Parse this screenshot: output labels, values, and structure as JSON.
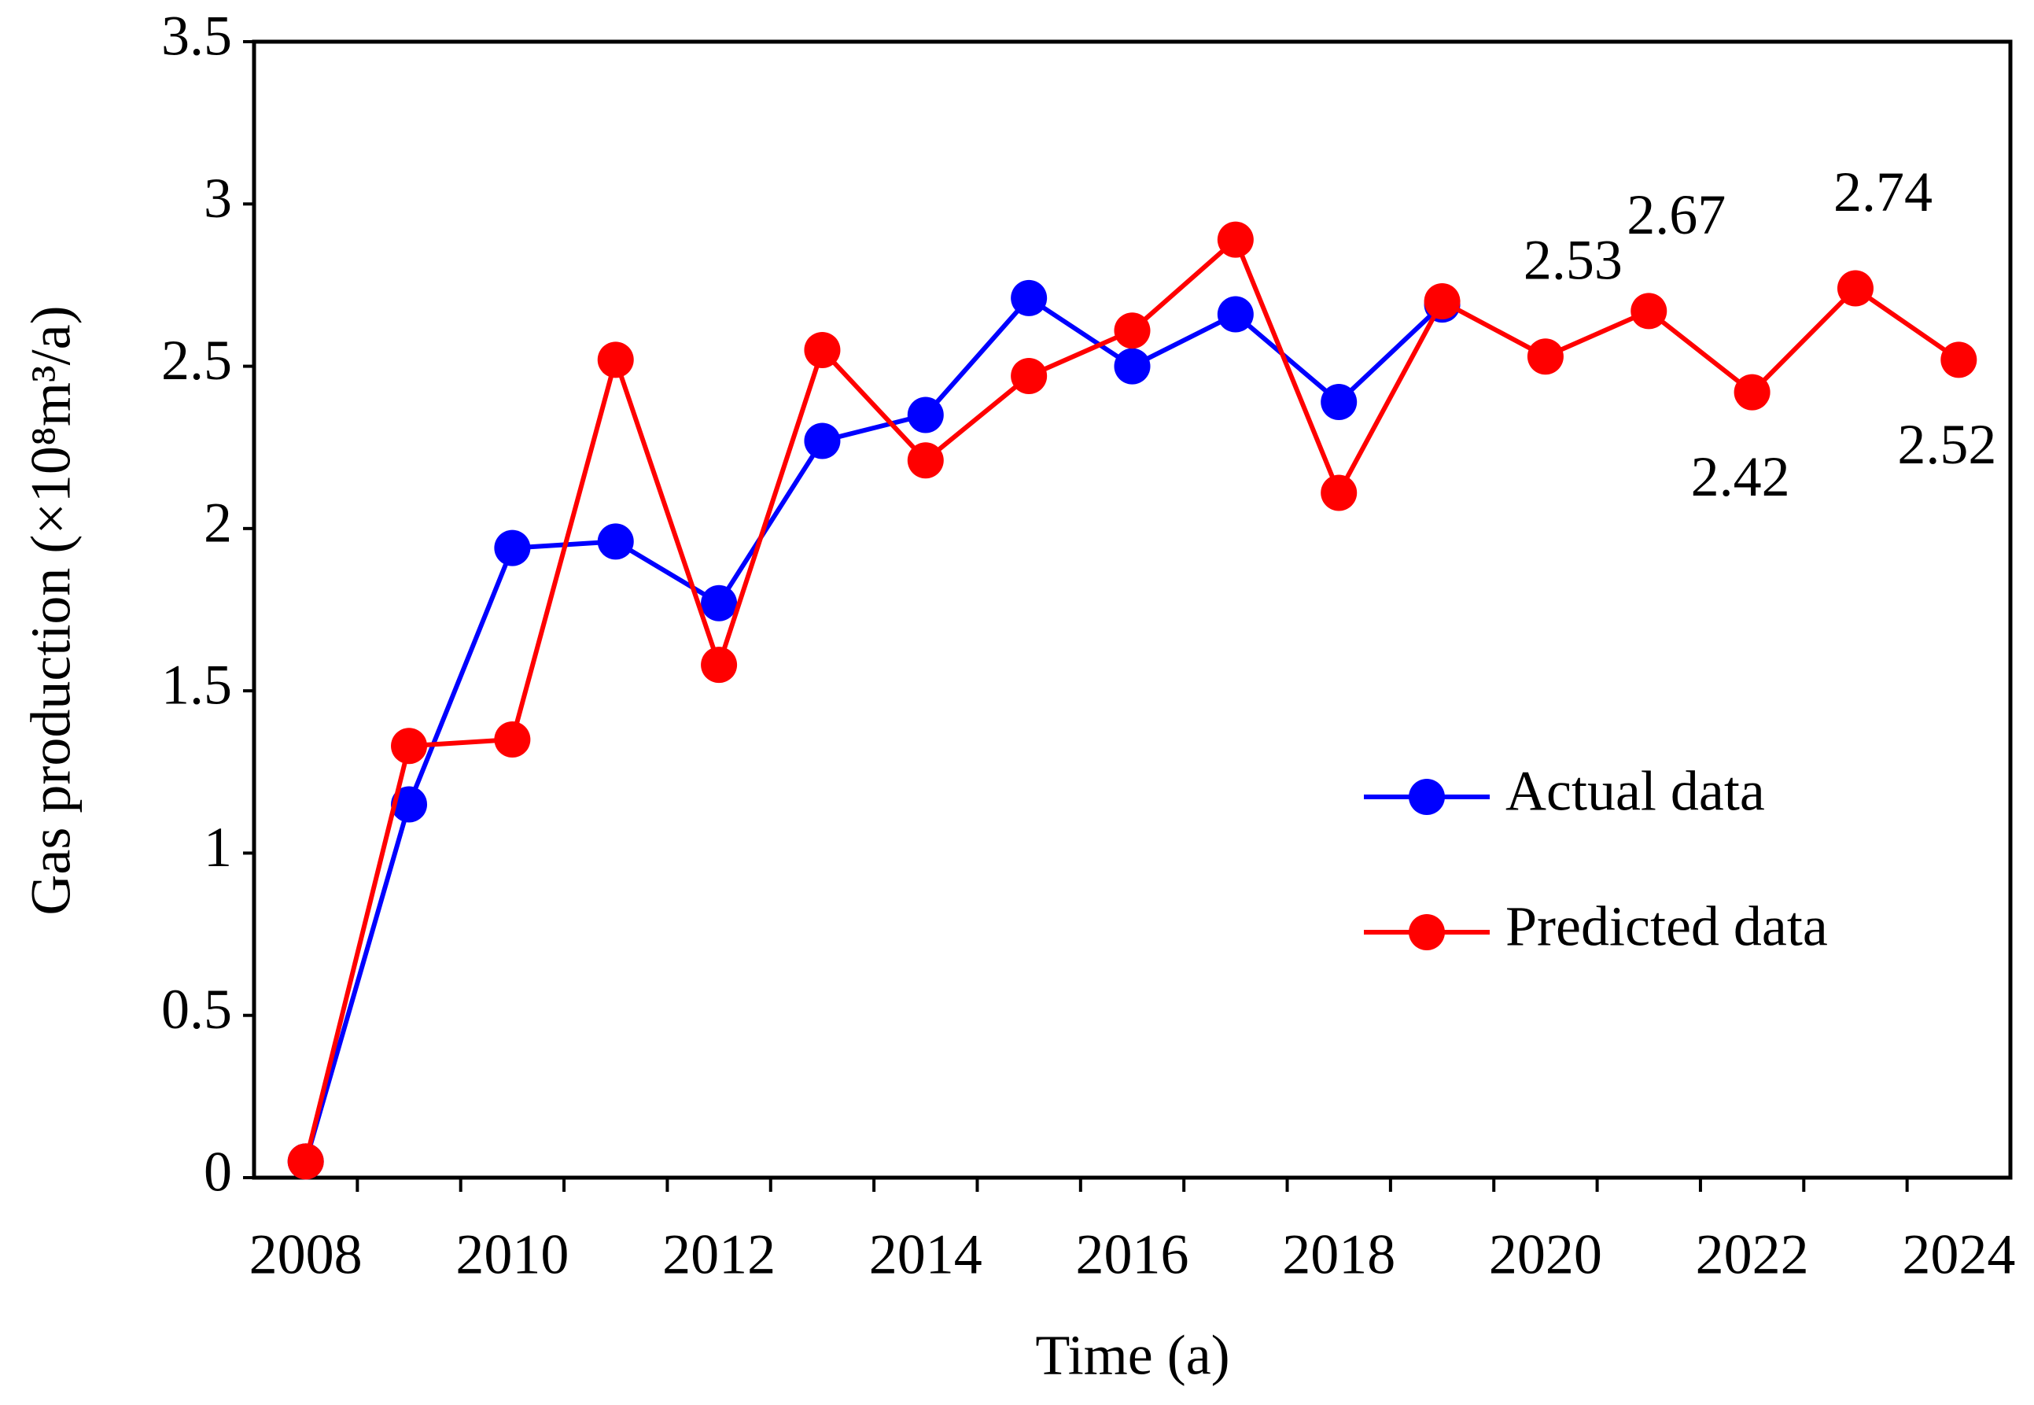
{
  "chart_data": {
    "type": "line",
    "x_label": "Time (a)",
    "y_label": "Gas production (×10⁸m³/a)",
    "categories": [
      "2008",
      null,
      "2010",
      null,
      "2012",
      null,
      "2014",
      null,
      "2016",
      null,
      "2018",
      null,
      "2020",
      null,
      "2022",
      null,
      "2024"
    ],
    "series": [
      {
        "name": "Actual data",
        "color": "#0000ff",
        "values": [
          0.05,
          1.15,
          1.94,
          1.96,
          1.77,
          2.27,
          2.35,
          2.71,
          2.5,
          2.66,
          2.39,
          2.69,
          null,
          null,
          null,
          null,
          null
        ]
      },
      {
        "name": "Predicted data",
        "color": "#ff0000",
        "values": [
          0.05,
          1.33,
          1.35,
          2.52,
          1.58,
          2.55,
          2.21,
          2.47,
          2.61,
          2.89,
          2.11,
          2.7,
          2.53,
          2.67,
          2.42,
          2.74,
          2.52
        ],
        "value_labels": [
          null,
          null,
          null,
          null,
          null,
          null,
          null,
          null,
          null,
          null,
          null,
          null,
          "2.53",
          "2.67",
          "2.42",
          "2.74",
          "2.52"
        ]
      }
    ],
    "ylim": [
      0,
      3.5
    ],
    "yticks": [
      0,
      0.5,
      1,
      1.5,
      2,
      2.5,
      3,
      3.5
    ],
    "grid": false,
    "legend": "right",
    "markers": true
  }
}
